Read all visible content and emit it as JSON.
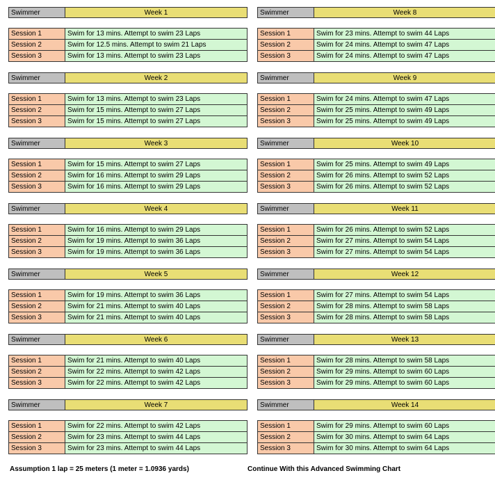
{
  "swimmer_label": "Swimmer",
  "left_weeks": [
    {
      "title": "Week 1",
      "sessions": [
        {
          "label": "Session 1",
          "text": "Swim for 13 mins. Attempt to swim 23 Laps"
        },
        {
          "label": "Session 2",
          "text": "Swim for 12.5 mins. Attempt to swim 21 Laps"
        },
        {
          "label": "Session 3",
          "text": "Swim for 13 mins. Attempt to swim 23 Laps"
        }
      ]
    },
    {
      "title": "Week 2",
      "sessions": [
        {
          "label": "Session 1",
          "text": "Swim for 13 mins. Attempt to swim 23 Laps"
        },
        {
          "label": "Session 2",
          "text": "Swim for 15 mins. Attempt to swim 27 Laps"
        },
        {
          "label": "Session 3",
          "text": "Swim for 15 mins. Attempt to swim 27 Laps"
        }
      ]
    },
    {
      "title": "Week 3",
      "sessions": [
        {
          "label": "Session 1",
          "text": "Swim for 15 mins. Attempt to swim 27 Laps"
        },
        {
          "label": "Session 2",
          "text": "Swim for 16 mins. Attempt to swim 29 Laps"
        },
        {
          "label": "Session 3",
          "text": "Swim for 16 mins. Attempt to swim 29 Laps"
        }
      ]
    },
    {
      "title": "Week 4",
      "sessions": [
        {
          "label": "Session 1",
          "text": "Swim for 16 mins. Attempt to swim 29 Laps"
        },
        {
          "label": "Session 2",
          "text": "Swim for 19 mins. Attempt to swim 36 Laps"
        },
        {
          "label": "Session 3",
          "text": "Swim for 19 mins. Attempt to swim 36 Laps"
        }
      ]
    },
    {
      "title": "Week 5",
      "sessions": [
        {
          "label": "Session 1",
          "text": "Swim for 19 mins. Attempt to swim 36 Laps"
        },
        {
          "label": "Session 2",
          "text": "Swim for 21 mins. Attempt to swim 40 Laps"
        },
        {
          "label": "Session 3",
          "text": "Swim for 21 mins. Attempt to swim 40 Laps"
        }
      ]
    },
    {
      "title": "Week 6",
      "sessions": [
        {
          "label": "Session 1",
          "text": "Swim for 21 mins. Attempt to swim 40 Laps"
        },
        {
          "label": "Session 2",
          "text": "Swim for 22 mins. Attempt to swim 42 Laps"
        },
        {
          "label": "Session 3",
          "text": "Swim for 22 mins. Attempt to swim 42 Laps"
        }
      ]
    },
    {
      "title": "Week 7",
      "sessions": [
        {
          "label": "Session 1",
          "text": "Swim for 22 mins. Attempt to swim 42 Laps"
        },
        {
          "label": "Session 2",
          "text": "Swim for 23 mins. Attempt to swim 44 Laps"
        },
        {
          "label": "Session 3",
          "text": "Swim for 23 mins. Attempt to swim 44 Laps"
        }
      ]
    }
  ],
  "right_weeks": [
    {
      "title": "Week 8",
      "sessions": [
        {
          "label": "Session 1",
          "text": "Swim for 23 mins. Attempt to swim 44 Laps"
        },
        {
          "label": "Session 2",
          "text": "Swim for 24 mins. Attempt to swim 47 Laps"
        },
        {
          "label": "Session 3",
          "text": "Swim for 24 mins. Attempt to swim 47 Laps"
        }
      ]
    },
    {
      "title": "Week 9",
      "sessions": [
        {
          "label": "Session 1",
          "text": "Swim for 24 mins. Attempt to swim 47 Laps"
        },
        {
          "label": "Session 2",
          "text": "Swim for 25 mins. Attempt to swim 49 Laps"
        },
        {
          "label": "Session 3",
          "text": "Swim for 25 mins. Attempt to swim 49 Laps"
        }
      ]
    },
    {
      "title": "Week 10",
      "sessions": [
        {
          "label": "Session 1",
          "text": "Swim for 25 mins. Attempt to swim 49 Laps"
        },
        {
          "label": "Session 2",
          "text": "Swim for 26 mins. Attempt to swim 52 Laps"
        },
        {
          "label": "Session 3",
          "text": "Swim for 26 mins. Attempt to swim 52 Laps"
        }
      ]
    },
    {
      "title": "Week 11",
      "sessions": [
        {
          "label": "Session 1",
          "text": "Swim for 26 mins. Attempt to swim 52 Laps"
        },
        {
          "label": "Session 2",
          "text": "Swim for 27 mins. Attempt to swim 54 Laps"
        },
        {
          "label": "Session 3",
          "text": "Swim for 27 mins. Attempt to swim 54 Laps"
        }
      ]
    },
    {
      "title": "Week 12",
      "sessions": [
        {
          "label": "Session 1",
          "text": "Swim for 27 mins. Attempt to swim 54 Laps"
        },
        {
          "label": "Session 2",
          "text": "Swim for 28 mins. Attempt to swim 58 Laps"
        },
        {
          "label": "Session 3",
          "text": "Swim for 28 mins. Attempt to swim 58 Laps"
        }
      ]
    },
    {
      "title": "Week 13",
      "sessions": [
        {
          "label": "Session 1",
          "text": "Swim for 28 mins. Attempt to swim 58 Laps"
        },
        {
          "label": "Session 2",
          "text": "Swim for 29 mins. Attempt to swim 60 Laps"
        },
        {
          "label": "Session 3",
          "text": "Swim for 29 mins. Attempt to swim 60 Laps"
        }
      ]
    },
    {
      "title": "Week 14",
      "sessions": [
        {
          "label": "Session 1",
          "text": "Swim for 29 mins. Attempt to swim 60 Laps"
        },
        {
          "label": "Session 2",
          "text": "Swim for 30 mins. Attempt to swim 64 Laps"
        },
        {
          "label": "Session 3",
          "text": "Swim for 30 mins. Attempt to swim 64 Laps"
        }
      ]
    }
  ],
  "footer": {
    "assumption": "Assumption 1 lap = 25 meters (1 meter = 1.0936 yards)",
    "continue_link": "Continue With this Advanced Swimming Chart"
  }
}
